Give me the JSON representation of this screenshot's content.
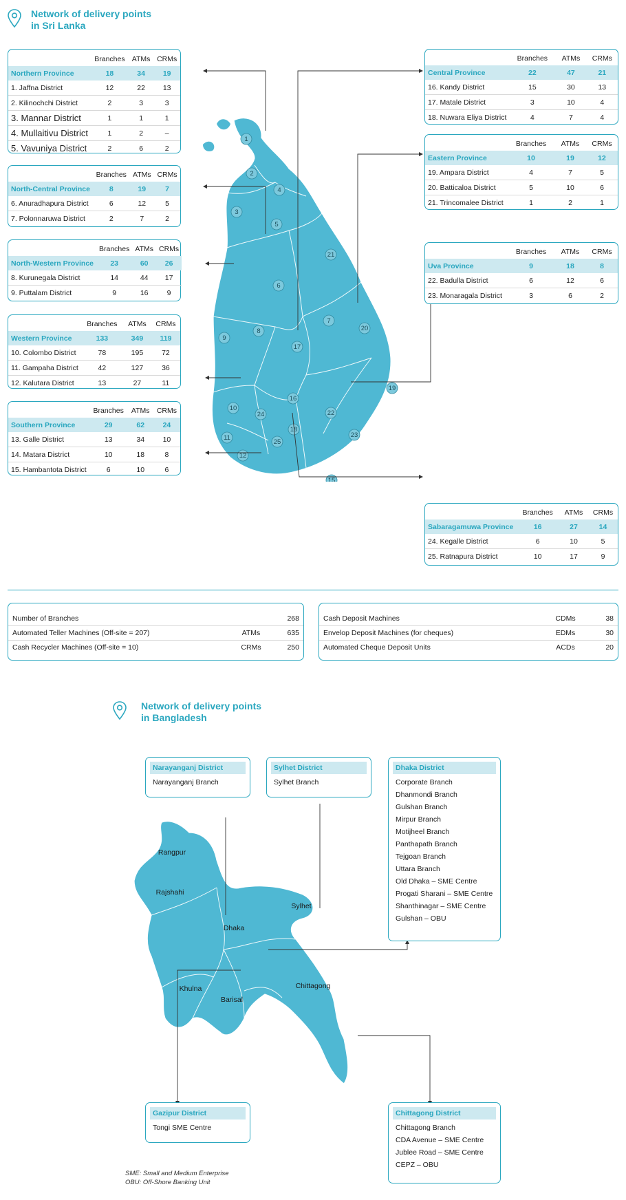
{
  "sl_title_1": "Network of delivery points",
  "sl_title_2": "in Sri Lanka",
  "bd_title_1": "Network of delivery points",
  "bd_title_2": "in Bangladesh",
  "col_branches": "Branches",
  "col_atms": "ATMs",
  "col_crms": "CRMs",
  "provinces": {
    "northern": {
      "name": "Northern Province",
      "b": "18",
      "a": "34",
      "c": "19",
      "districts": [
        [
          "1. Jaffna District",
          "12",
          "22",
          "13"
        ],
        [
          "2. Kilinochchi District",
          "2",
          "3",
          "3"
        ],
        [
          "3. Mannar District",
          "1",
          "1",
          "1"
        ],
        [
          "4. Mullaitivu District",
          "1",
          "2",
          "–"
        ],
        [
          "5. Vavuniya District",
          "2",
          "6",
          "2"
        ]
      ]
    },
    "northcentral": {
      "name": "North-Central Province",
      "b": "8",
      "a": "19",
      "c": "7",
      "districts": [
        [
          "6. Anuradhapura District",
          "6",
          "12",
          "5"
        ],
        [
          "7. Polonnaruwa District",
          "2",
          "7",
          "2"
        ]
      ]
    },
    "northwestern": {
      "name": "North-Western Province",
      "b": "23",
      "a": "60",
      "c": "26",
      "districts": [
        [
          "8. Kurunegala District",
          "14",
          "44",
          "17"
        ],
        [
          "9. Puttalam District",
          "9",
          "16",
          "9"
        ]
      ]
    },
    "western": {
      "name": "Western Province",
      "b": "133",
      "a": "349",
      "c": "119",
      "districts": [
        [
          "10. Colombo District",
          "78",
          "195",
          "72"
        ],
        [
          "11. Gampaha District",
          "42",
          "127",
          "36"
        ],
        [
          "12. Kalutara District",
          "13",
          "27",
          "11"
        ]
      ]
    },
    "southern": {
      "name": "Southern Province",
      "b": "29",
      "a": "62",
      "c": "24",
      "districts": [
        [
          "13. Galle District",
          "13",
          "34",
          "10"
        ],
        [
          "14. Matara District",
          "10",
          "18",
          "8"
        ],
        [
          "15. Hambantota District",
          "6",
          "10",
          "6"
        ]
      ]
    },
    "central": {
      "name": "Central Province",
      "b": "22",
      "a": "47",
      "c": "21",
      "districts": [
        [
          "16. Kandy District",
          "15",
          "30",
          "13"
        ],
        [
          "17. Matale District",
          "3",
          "10",
          "4"
        ],
        [
          "18. Nuwara Eliya District",
          "4",
          "7",
          "4"
        ]
      ]
    },
    "eastern": {
      "name": "Eastern Province",
      "b": "10",
      "a": "19",
      "c": "12",
      "districts": [
        [
          "19. Ampara District",
          "4",
          "7",
          "5"
        ],
        [
          "20. Batticaloa District",
          "5",
          "10",
          "6"
        ],
        [
          "21. Trincomalee District",
          "1",
          "2",
          "1"
        ]
      ]
    },
    "uva": {
      "name": "Uva Province",
      "b": "9",
      "a": "18",
      "c": "8",
      "districts": [
        [
          "22. Badulla District",
          "6",
          "12",
          "6"
        ],
        [
          "23. Monaragala District",
          "3",
          "6",
          "2"
        ]
      ]
    },
    "sabaragamuwa": {
      "name": "Sabaragamuwa Province",
      "b": "16",
      "a": "27",
      "c": "14",
      "districts": [
        [
          "24. Kegalle District",
          "6",
          "10",
          "5"
        ],
        [
          "25. Ratnapura District",
          "10",
          "17",
          "9"
        ]
      ]
    }
  },
  "map_numbers": [
    "1",
    "2",
    "3",
    "4",
    "5",
    "6",
    "7",
    "8",
    "9",
    "10",
    "11",
    "12",
    "13",
    "14",
    "15",
    "16",
    "17",
    "18",
    "19",
    "20",
    "21",
    "22",
    "23",
    "24",
    "25"
  ],
  "summary_left": [
    [
      "Number of Branches",
      "",
      "268"
    ],
    [
      "Automated Teller Machines (Off-site = 207)",
      "ATMs",
      "635"
    ],
    [
      "Cash Recycler Machines (Off-site = 10)",
      "CRMs",
      "250"
    ]
  ],
  "summary_right": [
    [
      "Cash Deposit Machines",
      "CDMs",
      "38"
    ],
    [
      "Envelop Deposit Machines (for cheques)",
      "EDMs",
      "30"
    ],
    [
      "Automated Cheque Deposit Units",
      "ACDs",
      "20"
    ]
  ],
  "bd_regions": [
    "Rangpur",
    "Rajshahi",
    "Dhaka",
    "Sylhet",
    "Khulna",
    "Barisal",
    "Chittagong"
  ],
  "bd_boxes": {
    "narayanganj": {
      "title": "Narayanganj District",
      "items": [
        "Narayanganj Branch"
      ]
    },
    "sylhet": {
      "title": "Sylhet District",
      "items": [
        "Sylhet Branch"
      ]
    },
    "dhaka": {
      "title": "Dhaka District",
      "items": [
        "Corporate Branch",
        "Dhanmondi Branch",
        "Gulshan Branch",
        "Mirpur Branch",
        "Motijheel Branch",
        "Panthapath Branch",
        "Tejgoan Branch",
        "Uttara Branch",
        "Old Dhaka – SME Centre",
        "Progati Sharani – SME Centre",
        "Shanthinagar – SME Centre",
        "Gulshan – OBU"
      ]
    },
    "gazipur": {
      "title": "Gazipur District",
      "items": [
        "Tongi SME Centre"
      ]
    },
    "chittagong": {
      "title": "Chittagong District",
      "items": [
        "Chittagong Branch",
        "CDA Avenue – SME Centre",
        "Jublee Road – SME Centre",
        "CEPZ – OBU"
      ]
    }
  },
  "footnote_1": "SME: Small and Medium Enterprise",
  "footnote_2": "OBU: Off-Shore Banking Unit"
}
